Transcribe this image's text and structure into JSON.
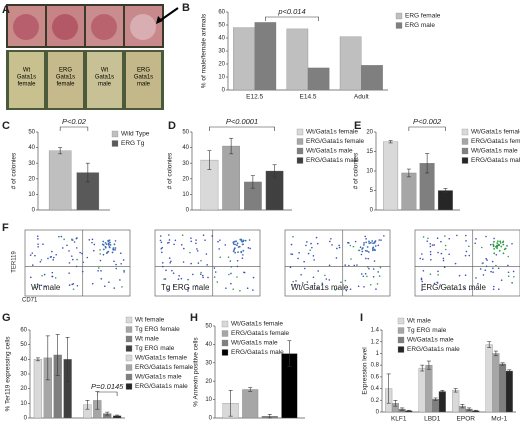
{
  "panel_labels": [
    "A",
    "B",
    "C",
    "D",
    "E",
    "F",
    "G",
    "H",
    "I"
  ],
  "panel_a": {
    "tubes": [
      [
        "Wt",
        "Gata1s",
        "female"
      ],
      [
        "ERG",
        "Gata1s",
        "female"
      ],
      [
        "Wt",
        "Gata1s",
        "male"
      ],
      [
        "ERG",
        "Gata1s",
        "male"
      ]
    ]
  },
  "panel_f": {
    "plots": [
      "Wt male",
      "Tg ERG male",
      "Wt/Gata1s male",
      "ERG/Gata1s male"
    ],
    "ylabel": "TER119",
    "xlabel": "CD71"
  },
  "chart_data": [
    {
      "type": "bar",
      "ylabel": "% of male/female animals",
      "categories": [
        "E12.5",
        "E14.5",
        "Adult"
      ],
      "series": [
        {
          "name": "ERG female",
          "color": "#bfbfbf",
          "values": [
            48,
            47,
            41
          ]
        },
        {
          "name": "ERG male",
          "color": "#7f7f7f",
          "values": [
            52,
            17,
            19
          ]
        }
      ],
      "ylim": [
        0,
        60
      ],
      "yticks": [
        0,
        10,
        20,
        30,
        40,
        50,
        60
      ],
      "annotation": "p<0.014"
    },
    {
      "type": "bar",
      "ylabel": "# of colonies",
      "categories": [
        "Wild Type",
        "ERG Tg"
      ],
      "values": [
        38,
        24
      ],
      "errors": [
        2,
        6
      ],
      "colors": [
        "#bfbfbf",
        "#595959"
      ],
      "ylim": [
        0,
        50
      ],
      "yticks": [
        0,
        10,
        20,
        30,
        40,
        50
      ],
      "annotation": "P<0.02"
    },
    {
      "type": "bar",
      "ylabel": "# of colonies",
      "categories": [
        "Wt/Gata1s female",
        "ERG/Gata1s female",
        "Wt/Gata1s male",
        "ERG/Gata1s male"
      ],
      "values": [
        32,
        41,
        18,
        25
      ],
      "errors": [
        6,
        5,
        4,
        4
      ],
      "colors": [
        "#d9d9d9",
        "#a6a6a6",
        "#7f7f7f",
        "#404040"
      ],
      "ylim": [
        0,
        50
      ],
      "yticks": [
        0,
        10,
        20,
        30,
        40,
        50
      ],
      "annotation": "P<0.0001"
    },
    {
      "type": "bar",
      "ylabel": "# of colonies",
      "categories": [
        "Wt/Gata1s female",
        "ERG/Gata1s female",
        "Wt/Gata1s male",
        "ERG/Gata1s male"
      ],
      "values": [
        17.5,
        9.5,
        12,
        5
      ],
      "errors": [
        0.3,
        1,
        2.5,
        0.5
      ],
      "colors": [
        "#d9d9d9",
        "#a6a6a6",
        "#7f7f7f",
        "#262626"
      ],
      "ylim": [
        0,
        20
      ],
      "yticks": [
        0,
        5,
        10,
        15,
        20
      ],
      "annotation": "P<0.002"
    },
    {
      "type": "bar",
      "ylabel": "% Ter119 expressing cells",
      "categories": [
        "Wt female",
        "Tg ERG female",
        "Wt male",
        "Tg ERG male",
        "Wt/Gata1s female",
        "ERG/Gata1s female",
        "Wt/Gata1s male",
        "ERG/Gata1s male"
      ],
      "values": [
        40,
        41,
        43,
        40,
        9,
        12,
        3,
        1.5
      ],
      "errors": [
        1,
        15,
        14,
        15,
        3,
        6,
        1,
        0.5
      ],
      "colors": [
        "#d9d9d9",
        "#a6a6a6",
        "#7f7f7f",
        "#404040",
        "#d9d9d9",
        "#a6a6a6",
        "#7f7f7f",
        "#262626"
      ],
      "ylim": [
        0,
        60
      ],
      "yticks": [
        0,
        10,
        20,
        30,
        40,
        50,
        60
      ],
      "annotation": "P=0.0145"
    },
    {
      "type": "bar",
      "ylabel": "% Annexin positive cells",
      "categories": [
        "Wt/Gata1s female",
        "ERG/Gata1s female",
        "Wt/Gata1s male",
        "ERG/Gata1s male"
      ],
      "values": [
        8,
        15.5,
        1,
        35
      ],
      "errors": [
        7,
        1,
        1,
        7
      ],
      "colors": [
        "#d9d9d9",
        "#a6a6a6",
        "#7f7f7f",
        "#000000"
      ],
      "ylim": [
        0,
        50
      ],
      "yticks": [
        0,
        10,
        20,
        30,
        40,
        50
      ]
    },
    {
      "type": "bar",
      "ylabel": "Expression level",
      "categories": [
        "KLF1",
        "LBD1",
        "EPOR",
        "Mcl-1"
      ],
      "series": [
        {
          "name": "Wt male",
          "color": "#d9d9d9",
          "values": [
            0.4,
            0.75,
            0.37,
            1.15
          ],
          "errors": [
            0.25,
            0.05,
            0.03,
            0.05
          ]
        },
        {
          "name": "Tg ERG male",
          "color": "#a6a6a6",
          "values": [
            0.15,
            0.8,
            0.1,
            1.0
          ],
          "errors": [
            0.05,
            0.07,
            0.03,
            0.04
          ]
        },
        {
          "name": "Wt/Gata1s male",
          "color": "#7f7f7f",
          "values": [
            0.05,
            0.22,
            0.05,
            0.82
          ],
          "errors": [
            0.02,
            0.02,
            0.02,
            0.02
          ]
        },
        {
          "name": "ERG/Gata1s male",
          "color": "#262626",
          "values": [
            0.02,
            0.35,
            0.02,
            0.7
          ],
          "errors": [
            0.01,
            0.02,
            0.01,
            0.02
          ]
        }
      ],
      "ylim": [
        0,
        1.4
      ],
      "yticks": [
        0,
        0.2,
        0.4,
        0.6,
        0.8,
        1,
        1.2,
        1.4
      ]
    }
  ]
}
